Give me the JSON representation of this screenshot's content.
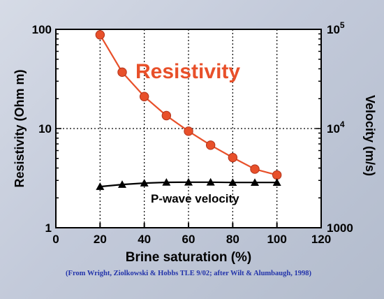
{
  "chart_data": {
    "type": "line",
    "xlabel": "Brine saturation (%)",
    "ylabel_left": "Resistivity (Ohm m)",
    "ylabel_right": "Velocity (m/s)",
    "xlim": [
      0,
      120
    ],
    "xticks": [
      "0",
      "20",
      "40",
      "60",
      "80",
      "100",
      "120"
    ],
    "ylim_left": [
      1,
      100
    ],
    "yscale_left": "log",
    "yticks_left": [
      "1",
      "10",
      "100"
    ],
    "ylim_right": [
      1000,
      100000
    ],
    "yscale_right": "log",
    "yticks_right": [
      {
        "base": "1000",
        "exp": ""
      },
      {
        "base": "10",
        "exp": "4"
      },
      {
        "base": "10",
        "exp": "5"
      }
    ],
    "grid": true,
    "series": [
      {
        "name": "Resistivity",
        "axis": "left",
        "color": "#e8502a",
        "marker": "circle",
        "x": [
          20,
          30,
          40,
          50,
          60,
          70,
          80,
          90,
          100
        ],
        "y": [
          88,
          37,
          21,
          13.5,
          9.4,
          6.8,
          5.1,
          3.9,
          3.4
        ]
      },
      {
        "name": "P-wave velocity",
        "axis": "right",
        "color": "#000000",
        "marker": "triangle",
        "x": [
          20,
          30,
          40,
          50,
          60,
          70,
          80,
          90,
          100
        ],
        "y": [
          2600,
          2730,
          2820,
          2870,
          2880,
          2880,
          2860,
          2860,
          2860
        ]
      }
    ],
    "annotations": [
      {
        "text": "Resistivity",
        "color": "#e8502a"
      },
      {
        "text": "P-wave velocity",
        "color": "#000000"
      }
    ]
  },
  "credit": "(From Wright, Ziolkowski & Hobbs TLE 9/02; after Wilt & Alumbaugh, 1998)"
}
